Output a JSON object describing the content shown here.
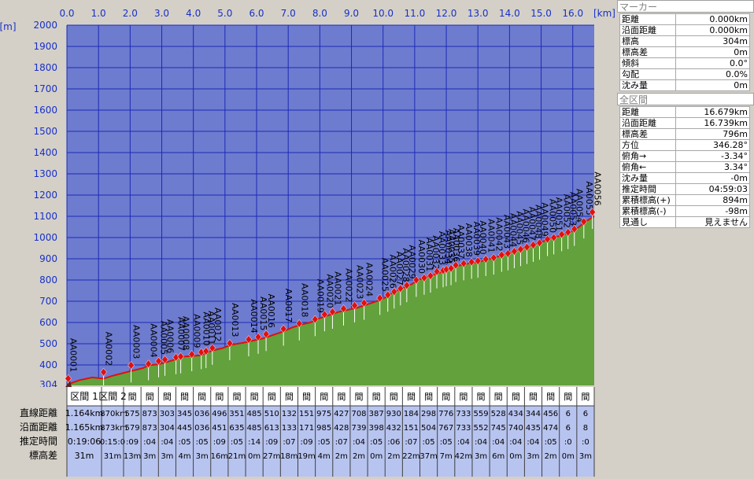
{
  "chart_data": {
    "type": "area",
    "x_unit_label": "[km]",
    "y_unit_label": "[m]",
    "x_ticks": [
      "0.0",
      "1.0",
      "2.0",
      "3.0",
      "4.0",
      "5.0",
      "6.0",
      "7.0",
      "8.0",
      "9.0",
      "10.0",
      "11.0",
      "12.0",
      "13.0",
      "14.0",
      "15.0",
      "16.0"
    ],
    "y_ticks": [
      2000,
      1900,
      1800,
      1700,
      1600,
      1500,
      1400,
      1300,
      1200,
      1100,
      1000,
      900,
      800,
      700,
      600,
      500,
      400
    ],
    "y_min_label": "304",
    "xlim": [
      0,
      16.679
    ],
    "ylim": [
      304,
      2000
    ],
    "points": [
      [
        0,
        304
      ],
      [
        0.15,
        315
      ],
      [
        0.4,
        328
      ],
      [
        0.8,
        340
      ],
      [
        1.16,
        335
      ],
      [
        1.5,
        350
      ],
      [
        2.0,
        368
      ],
      [
        2.4,
        382
      ],
      [
        2.6,
        395
      ],
      [
        2.9,
        403
      ],
      [
        3.2,
        415
      ],
      [
        3.4,
        425
      ],
      [
        3.6,
        438
      ],
      [
        3.9,
        442
      ],
      [
        4.2,
        445
      ],
      [
        4.4,
        456
      ],
      [
        4.6,
        468
      ],
      [
        4.9,
        478
      ],
      [
        5.2,
        495
      ],
      [
        5.6,
        505
      ],
      [
        5.9,
        515
      ],
      [
        6.2,
        525
      ],
      [
        6.5,
        540
      ],
      [
        6.8,
        555
      ],
      [
        7.1,
        575
      ],
      [
        7.4,
        590
      ],
      [
        7.7,
        600
      ],
      [
        8.0,
        620
      ],
      [
        8.3,
        635
      ],
      [
        8.6,
        650
      ],
      [
        8.9,
        660
      ],
      [
        9.2,
        670
      ],
      [
        9.5,
        685
      ],
      [
        9.8,
        700
      ],
      [
        10.1,
        720
      ],
      [
        10.3,
        740
      ],
      [
        10.6,
        760
      ],
      [
        10.9,
        780
      ],
      [
        11.1,
        800
      ],
      [
        11.4,
        815
      ],
      [
        11.6,
        825
      ],
      [
        11.8,
        835
      ],
      [
        12.0,
        845
      ],
      [
        12.2,
        858
      ],
      [
        12.4,
        868
      ],
      [
        12.6,
        875
      ],
      [
        12.8,
        880
      ],
      [
        13.0,
        885
      ],
      [
        13.2,
        892
      ],
      [
        13.4,
        900
      ],
      [
        13.6,
        908
      ],
      [
        13.8,
        918
      ],
      [
        14.0,
        928
      ],
      [
        14.2,
        938
      ],
      [
        14.4,
        948
      ],
      [
        14.6,
        958
      ],
      [
        14.8,
        968
      ],
      [
        15.0,
        978
      ],
      [
        15.2,
        990
      ],
      [
        15.4,
        1000
      ],
      [
        15.6,
        1008
      ],
      [
        15.8,
        1018
      ],
      [
        16.0,
        1030
      ],
      [
        16.2,
        1050
      ],
      [
        16.4,
        1075
      ],
      [
        16.679,
        1100
      ]
    ],
    "markers": [
      {
        "label": "AA0001",
        "km": 0.04,
        "elev": 335
      },
      {
        "label": "AA0002",
        "km": 1.16,
        "elev": 364
      },
      {
        "label": "AA0003",
        "km": 2.03,
        "elev": 395
      },
      {
        "label": "AA0004",
        "km": 2.58,
        "elev": 405
      },
      {
        "label": "AA0005",
        "km": 2.9,
        "elev": 418
      },
      {
        "label": "AA0006",
        "km": 3.1,
        "elev": 425
      },
      {
        "label": "AA0007",
        "km": 3.45,
        "elev": 436
      },
      {
        "label": "AA0008",
        "km": 3.6,
        "elev": 440
      },
      {
        "label": "AA0009",
        "km": 3.95,
        "elev": 450
      },
      {
        "label": "AA0010",
        "km": 4.25,
        "elev": 460
      },
      {
        "label": "AA0011",
        "km": 4.4,
        "elev": 465
      },
      {
        "label": "AA0012",
        "km": 4.6,
        "elev": 480
      },
      {
        "label": "AA0013",
        "km": 5.15,
        "elev": 502
      },
      {
        "label": "AA0014",
        "km": 5.75,
        "elev": 520
      },
      {
        "label": "AA0015",
        "km": 6.05,
        "elev": 532
      },
      {
        "label": "AA0016",
        "km": 6.3,
        "elev": 545
      },
      {
        "label": "AA0017",
        "km": 6.85,
        "elev": 570
      },
      {
        "label": "AA0018",
        "km": 7.35,
        "elev": 595
      },
      {
        "label": "AA0019",
        "km": 7.85,
        "elev": 615
      },
      {
        "label": "AA0020",
        "km": 8.15,
        "elev": 638
      },
      {
        "label": "AA0021",
        "km": 8.4,
        "elev": 650
      },
      {
        "label": "AA0022",
        "km": 8.75,
        "elev": 665
      },
      {
        "label": "AA0023",
        "km": 9.1,
        "elev": 680
      },
      {
        "label": "AA0024",
        "km": 9.4,
        "elev": 692
      },
      {
        "label": "AA0025",
        "km": 9.9,
        "elev": 715
      },
      {
        "label": "AA0026",
        "km": 10.15,
        "elev": 730
      },
      {
        "label": "AA0027",
        "km": 10.35,
        "elev": 745
      },
      {
        "label": "AA0028",
        "km": 10.55,
        "elev": 760
      },
      {
        "label": "AA0029",
        "km": 10.75,
        "elev": 775
      },
      {
        "label": "AA0030",
        "km": 11.05,
        "elev": 800
      },
      {
        "label": "AA0031",
        "km": 11.3,
        "elev": 810
      },
      {
        "label": "AA0032",
        "km": 11.5,
        "elev": 820
      },
      {
        "label": "AA0033",
        "km": 11.7,
        "elev": 840
      },
      {
        "label": "AA0034",
        "km": 11.9,
        "elev": 845
      },
      {
        "label": "AA0035",
        "km": 12.0,
        "elev": 850
      },
      {
        "label": "AA0036",
        "km": 12.15,
        "elev": 855
      },
      {
        "label": "AA0037",
        "km": 12.3,
        "elev": 870
      },
      {
        "label": "AA0038",
        "km": 12.55,
        "elev": 878
      },
      {
        "label": "AA0039",
        "km": 12.8,
        "elev": 885
      },
      {
        "label": "AA0040",
        "km": 13.0,
        "elev": 890
      },
      {
        "label": "AA0041",
        "km": 13.25,
        "elev": 898
      },
      {
        "label": "AA0042",
        "km": 13.5,
        "elev": 905
      },
      {
        "label": "AA0043",
        "km": 13.75,
        "elev": 918
      },
      {
        "label": "AA0044",
        "km": 13.95,
        "elev": 925
      },
      {
        "label": "AA0045",
        "km": 14.15,
        "elev": 935
      },
      {
        "label": "AA0046",
        "km": 14.35,
        "elev": 945
      },
      {
        "label": "AA0047",
        "km": 14.55,
        "elev": 955
      },
      {
        "label": "AA0048",
        "km": 14.75,
        "elev": 965
      },
      {
        "label": "AA0049",
        "km": 14.95,
        "elev": 975
      },
      {
        "label": "AA0050",
        "km": 15.2,
        "elev": 992
      },
      {
        "label": "AA0051",
        "km": 15.4,
        "elev": 1000
      },
      {
        "label": "AA0052",
        "km": 15.65,
        "elev": 1015
      },
      {
        "label": "AA0053",
        "km": 15.85,
        "elev": 1025
      },
      {
        "label": "AA0054",
        "km": 16.05,
        "elev": 1040
      },
      {
        "label": "AA0055",
        "km": 16.35,
        "elev": 1075
      },
      {
        "label": "AA0056",
        "km": 16.62,
        "elev": 1120
      }
    ]
  },
  "section_table": {
    "row_labels": [
      "直線距離",
      "沿面距離",
      "推定時間",
      "標高差"
    ],
    "first_section": {
      "name": "区間 1",
      "straight": "1.164km",
      "surface": "1.165km",
      "time": "0:19:06",
      "elev_diff": "31m"
    },
    "second_section": {
      "name": "区間 2",
      "straight": ".870km",
      "surface": ".873km",
      "time": "0:15:0",
      "elev_diff": "31m"
    },
    "narrow_header": "間",
    "narrow_rows": [
      [
        "575",
        "873",
        "303",
        "345",
        "036",
        "496",
        "351",
        "485",
        "510",
        "132",
        "151",
        "975",
        "427",
        "708",
        "387",
        "930",
        "184",
        "298",
        "776",
        "733",
        "559",
        "528",
        "434",
        "344",
        "456",
        "6",
        "6"
      ],
      [
        "579",
        "873",
        "304",
        "445",
        "036",
        "451",
        "635",
        "485",
        "613",
        "133",
        "171",
        "985",
        "428",
        "739",
        "398",
        "432",
        "151",
        "504",
        "767",
        "733",
        "552",
        "745",
        "740",
        "435",
        "474",
        "6",
        "8"
      ],
      [
        ":09",
        ":04",
        ":04",
        ":05",
        ":05",
        ":09",
        ":05",
        ":14",
        ":09",
        ":07",
        ":09",
        ":05",
        ":07",
        ":04",
        ":05",
        ":06",
        ":07",
        ":05",
        ":05",
        ":04",
        ":04",
        ":04",
        ":04",
        ":04",
        ":05",
        ":0",
        ":0"
      ],
      [
        "13m",
        "3m",
        "3m",
        "4m",
        "3m",
        "16m",
        "21m",
        "0m",
        "27m",
        "18m",
        "19m",
        "4m",
        "2m",
        "2m",
        "0m",
        "2m",
        "22m",
        "37m",
        "7m",
        "42m",
        "3m",
        "6m",
        "0m",
        "3m",
        "2m",
        "0m",
        "3m"
      ]
    ]
  },
  "marker_panel": {
    "title": "マーカー",
    "rows": [
      {
        "label": "距離",
        "value": "0.000km"
      },
      {
        "label": "沿面距離",
        "value": "0.000km"
      },
      {
        "label": "標高",
        "value": "304m"
      },
      {
        "label": "標高差",
        "value": "0m"
      },
      {
        "label": "傾斜",
        "value": "0.0°"
      },
      {
        "label": "勾配",
        "value": "0.0%"
      },
      {
        "label": "沈み量",
        "value": "0m"
      }
    ]
  },
  "total_panel": {
    "title": "全区間",
    "rows": [
      {
        "label": "距離",
        "value": "16.679km"
      },
      {
        "label": "沿面距離",
        "value": "16.739km"
      },
      {
        "label": "標高差",
        "value": "796m"
      },
      {
        "label": "方位",
        "value": "346.28°"
      },
      {
        "label": "俯角→",
        "value": "-3.34°"
      },
      {
        "label": "俯角←",
        "value": "3.34°"
      },
      {
        "label": "沈み量",
        "value": "-0m"
      },
      {
        "label": "推定時間",
        "value": "04:59:03"
      },
      {
        "label": "累積標高(+)",
        "value": "894m"
      },
      {
        "label": "累積標高(-)",
        "value": "-98m"
      },
      {
        "label": "見通し",
        "value": "見えません"
      }
    ]
  },
  "colors": {
    "plot_bg": "#6e7cd0",
    "grid": "#1c2ab4",
    "axis_text": "#1830c8",
    "terrain": "#62a13c",
    "profile_line": "#e01010",
    "marker": "#e01010",
    "table_bg": "#b8c4f0"
  }
}
